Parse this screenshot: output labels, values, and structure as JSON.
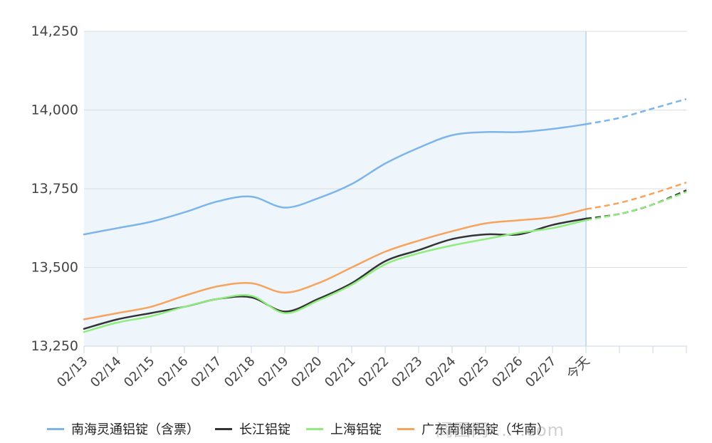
{
  "chart_data": {
    "type": "line",
    "categories": [
      "02/13",
      "02/14",
      "02/15",
      "02/16",
      "02/17",
      "02/18",
      "02/19",
      "02/20",
      "02/21",
      "02/22",
      "02/23",
      "02/24",
      "02/25",
      "02/26",
      "02/27",
      "今天",
      "",
      "",
      ""
    ],
    "today_index": 15,
    "ylim": [
      13250,
      14250
    ],
    "yticks": [
      13250,
      13500,
      13750,
      14000,
      14250
    ],
    "ytick_labels": [
      "13,250",
      "13,500",
      "13,750",
      "14,000",
      "14,250"
    ],
    "grid": true,
    "legend_position": "bottom",
    "series": [
      {
        "name": "南海灵通铝锭（含票）",
        "color": "#7cb5ec",
        "values": [
          13605,
          13625,
          13645,
          13675,
          13710,
          13725,
          13690,
          13720,
          13765,
          13830,
          13880,
          13920,
          13930,
          13930,
          13940,
          13955,
          13975,
          14005,
          14035
        ]
      },
      {
        "name": "长江铝锭",
        "color": "#333333",
        "values": [
          13305,
          13335,
          13355,
          13375,
          13400,
          13405,
          13360,
          13400,
          13450,
          13520,
          13555,
          13590,
          13605,
          13605,
          13635,
          13655,
          13670,
          13700,
          13745
        ]
      },
      {
        "name": "上海铝锭",
        "color": "#90ed7d",
        "values": [
          13295,
          13325,
          13345,
          13375,
          13400,
          13410,
          13355,
          13395,
          13445,
          13510,
          13545,
          13570,
          13590,
          13610,
          13625,
          13650,
          13670,
          13700,
          13740
        ]
      },
      {
        "name": "广东南储铝锭（华南）",
        "color": "#f7a35c",
        "values": [
          13335,
          13355,
          13375,
          13410,
          13440,
          13450,
          13420,
          13450,
          13500,
          13550,
          13585,
          13615,
          13640,
          13650,
          13660,
          13685,
          13705,
          13735,
          13770
        ]
      }
    ]
  },
  "watermark": "阎图网 ... .com"
}
